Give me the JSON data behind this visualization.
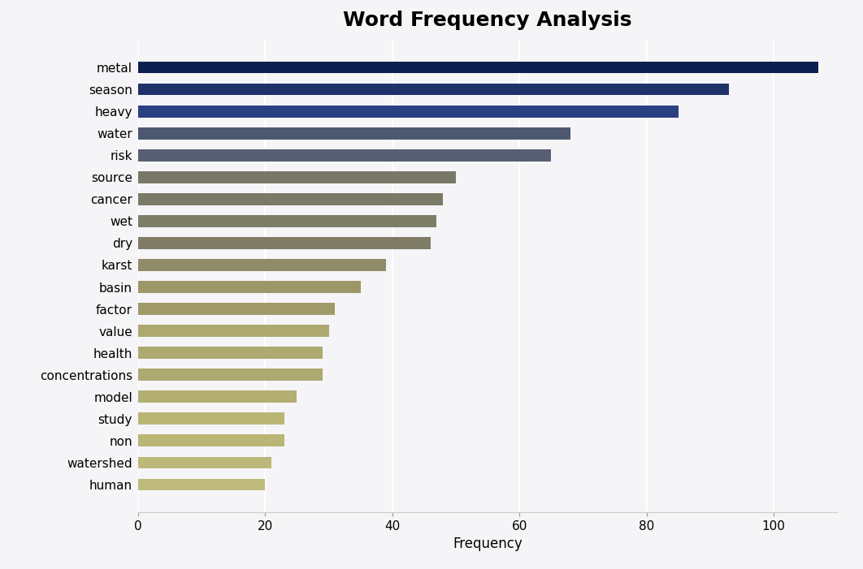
{
  "title": "Word Frequency Analysis",
  "categories": [
    "metal",
    "season",
    "heavy",
    "water",
    "risk",
    "source",
    "cancer",
    "wet",
    "dry",
    "karst",
    "basin",
    "factor",
    "value",
    "health",
    "concentrations",
    "model",
    "study",
    "non",
    "watershed",
    "human"
  ],
  "values": [
    107,
    93,
    85,
    68,
    65,
    50,
    48,
    47,
    46,
    39,
    35,
    31,
    30,
    29,
    29,
    25,
    23,
    23,
    21,
    20
  ],
  "bar_colors": [
    "#0d1f4e",
    "#1e3168",
    "#2a4080",
    "#4d5870",
    "#585f72",
    "#797868",
    "#7a7a66",
    "#7e7d68",
    "#7e7c65",
    "#8f8b68",
    "#9c9668",
    "#a09a6a",
    "#aca870",
    "#ada970",
    "#ada970",
    "#b3ae72",
    "#b9b575",
    "#b9b575",
    "#bcb87a",
    "#bebb7c"
  ],
  "xlabel": "Frequency",
  "ylabel": "",
  "xlim": [
    0,
    110
  ],
  "xticks": [
    0,
    20,
    40,
    60,
    80,
    100
  ],
  "background_color": "#f5f5f8",
  "title_fontsize": 18,
  "label_fontsize": 12,
  "tick_fontsize": 11,
  "bar_height": 0.55
}
